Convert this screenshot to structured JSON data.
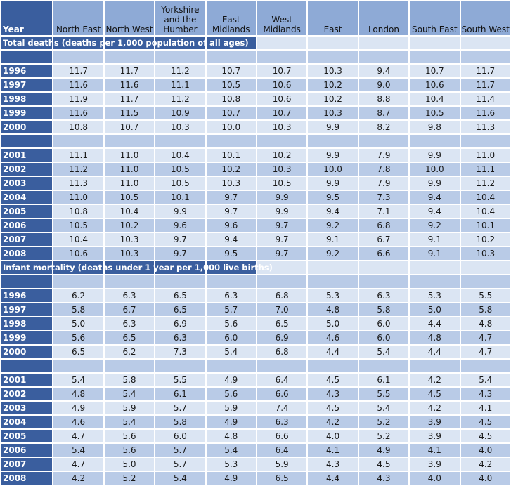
{
  "header": {
    "year": "Year",
    "regions": [
      "North East",
      "North West",
      "Yorkshire and the Humber",
      "East Midlands",
      "West Midlands",
      "East",
      "London",
      "South East",
      "South West"
    ]
  },
  "sections": [
    {
      "title": "Total deaths (deaths per 1,000 population of all ages)",
      "groups": [
        {
          "rows": [
            {
              "year": "1996",
              "values": [
                "11.7",
                "11.7",
                "11.2",
                "10.7",
                "10.7",
                "10.3",
                "9.4",
                "10.7",
                "11.7"
              ]
            },
            {
              "year": "1997",
              "values": [
                "11.6",
                "11.6",
                "11.1",
                "10.5",
                "10.6",
                "10.2",
                "9.0",
                "10.6",
                "11.7"
              ]
            },
            {
              "year": "1998",
              "values": [
                "11.9",
                "11.7",
                "11.2",
                "10.8",
                "10.6",
                "10.2",
                "8.8",
                "10.4",
                "11.4"
              ]
            },
            {
              "year": "1999",
              "values": [
                "11.6",
                "11.5",
                "10.9",
                "10.7",
                "10.7",
                "10.3",
                "8.7",
                "10.5",
                "11.6"
              ]
            },
            {
              "year": "2000",
              "values": [
                "10.8",
                "10.7",
                "10.3",
                "10.0",
                "10.3",
                "9.9",
                "8.2",
                "9.8",
                "11.3"
              ]
            }
          ]
        },
        {
          "rows": [
            {
              "year": "2001",
              "values": [
                "11.1",
                "11.0",
                "10.4",
                "10.1",
                "10.2",
                "9.9",
                "7.9",
                "9.9",
                "11.0"
              ]
            },
            {
              "year": "2002",
              "values": [
                "11.2",
                "11.0",
                "10.5",
                "10.2",
                "10.3",
                "10.0",
                "7.8",
                "10.0",
                "11.1"
              ]
            },
            {
              "year": "2003",
              "values": [
                "11.3",
                "11.0",
                "10.5",
                "10.3",
                "10.5",
                "9.9",
                "7.9",
                "9.9",
                "11.2"
              ]
            },
            {
              "year": "2004",
              "values": [
                "11.0",
                "10.5",
                "10.1",
                "9.7",
                "9.9",
                "9.5",
                "7.3",
                "9.4",
                "10.4"
              ]
            },
            {
              "year": "2005",
              "values": [
                "10.8",
                "10.4",
                "9.9",
                "9.7",
                "9.9",
                "9.4",
                "7.1",
                "9.4",
                "10.4"
              ]
            },
            {
              "year": "2006",
              "values": [
                "10.5",
                "10.2",
                "9.6",
                "9.6",
                "9.7",
                "9.2",
                "6.8",
                "9.2",
                "10.1"
              ]
            },
            {
              "year": "2007",
              "values": [
                "10.4",
                "10.3",
                "9.7",
                "9.4",
                "9.7",
                "9.1",
                "6.7",
                "9.1",
                "10.2"
              ]
            },
            {
              "year": "2008",
              "values": [
                "10.6",
                "10.3",
                "9.7",
                "9.5",
                "9.7",
                "9.2",
                "6.6",
                "9.1",
                "10.3"
              ]
            }
          ]
        }
      ]
    },
    {
      "title": "Infant mortality (deaths under 1 year per 1,000 live births)",
      "groups": [
        {
          "rows": [
            {
              "year": "1996",
              "values": [
                "6.2",
                "6.3",
                "6.5",
                "6.3",
                "6.8",
                "5.3",
                "6.3",
                "5.3",
                "5.5"
              ]
            },
            {
              "year": "1997",
              "values": [
                "5.8",
                "6.7",
                "6.5",
                "5.7",
                "7.0",
                "4.8",
                "5.8",
                "5.0",
                "5.8"
              ]
            },
            {
              "year": "1998",
              "values": [
                "5.0",
                "6.3",
                "6.9",
                "5.6",
                "6.5",
                "5.0",
                "6.0",
                "4.4",
                "4.8"
              ]
            },
            {
              "year": "1999",
              "values": [
                "5.6",
                "6.5",
                "6.3",
                "6.0",
                "6.9",
                "4.6",
                "6.0",
                "4.8",
                "4.7"
              ]
            },
            {
              "year": "2000",
              "values": [
                "6.5",
                "6.2",
                "7.3",
                "5.4",
                "6.8",
                "4.4",
                "5.4",
                "4.4",
                "4.7"
              ]
            }
          ]
        },
        {
          "rows": [
            {
              "year": "2001",
              "values": [
                "5.4",
                "5.8",
                "5.5",
                "4.9",
                "6.4",
                "4.5",
                "6.1",
                "4.2",
                "5.4"
              ]
            },
            {
              "year": "2002",
              "values": [
                "4.8",
                "5.4",
                "6.1",
                "5.6",
                "6.6",
                "4.3",
                "5.5",
                "4.5",
                "4.3"
              ]
            },
            {
              "year": "2003",
              "values": [
                "4.9",
                "5.9",
                "5.7",
                "5.9",
                "7.4",
                "4.5",
                "5.4",
                "4.2",
                "4.1"
              ]
            },
            {
              "year": "2004",
              "values": [
                "4.6",
                "5.4",
                "5.8",
                "4.9",
                "6.3",
                "4.2",
                "5.2",
                "3.9",
                "4.5"
              ]
            },
            {
              "year": "2005",
              "values": [
                "4.7",
                "5.6",
                "6.0",
                "4.8",
                "6.6",
                "4.0",
                "5.2",
                "3.9",
                "4.5"
              ]
            },
            {
              "year": "2006",
              "values": [
                "5.4",
                "5.6",
                "5.7",
                "5.4",
                "6.4",
                "4.1",
                "4.9",
                "4.1",
                "4.0"
              ]
            },
            {
              "year": "2007",
              "values": [
                "4.7",
                "5.0",
                "5.7",
                "5.3",
                "5.9",
                "4.3",
                "4.5",
                "3.9",
                "4.2"
              ]
            },
            {
              "year": "2008",
              "values": [
                "4.2",
                "5.2",
                "5.4",
                "4.9",
                "6.5",
                "4.4",
                "4.3",
                "4.0",
                "4.0"
              ]
            }
          ]
        }
      ]
    }
  ],
  "colors": {
    "header_dark": "#3a5e9e",
    "header_light": "#8eaad6",
    "row_light": "#dbe5f3",
    "row_dark": "#b9cbe7"
  }
}
